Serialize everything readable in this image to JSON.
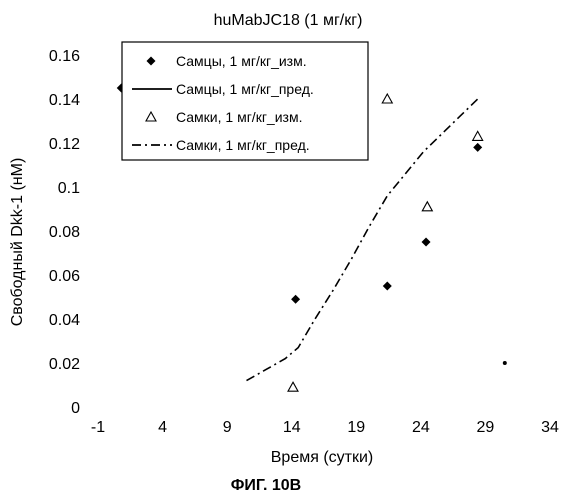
{
  "chart_data": {
    "type": "scatter",
    "title": "huMabJC18 (1 мг/кг)",
    "xlabel": "Время (сутки)",
    "ylabel": "Свободный Dkk-1 (нМ)",
    "caption": "ФИГ. 10В",
    "xlim": [
      -1,
      34
    ],
    "ylim": [
      0,
      0.16
    ],
    "xticks": [
      "-1",
      "4",
      "9",
      "14",
      "19",
      "24",
      "29",
      "34"
    ],
    "yticks": [
      "0",
      "0.02",
      "0.04",
      "0.06",
      "0.08",
      "0.1",
      "0.12",
      "0.14",
      "0.16"
    ],
    "legend_position": "top-center",
    "series": [
      {
        "name": "Самцы, 1 мг/кг_изм.",
        "kind": "marker-diamond",
        "color": "#000000",
        "x": [
          0.8,
          14.3,
          21.4,
          24.4,
          28.4
        ],
        "y": [
          0.145,
          0.049,
          0.055,
          0.075,
          0.118
        ]
      },
      {
        "name": "Самцы, 1 мг/кг_пред.",
        "kind": "line-solid",
        "color": "#000000",
        "x": [],
        "y": []
      },
      {
        "name": "Самки, 1 мг/кг_изм.",
        "kind": "marker-triangle-open",
        "color": "#000000",
        "x": [
          14.1,
          21.4,
          24.5,
          28.4
        ],
        "y": [
          0.009,
          0.14,
          0.091,
          0.123
        ]
      },
      {
        "name": "Самки, 1 мг/кг_пред.",
        "kind": "line-dashdot",
        "color": "#000000",
        "x": [
          10.5,
          12.0,
          13.5,
          14.5,
          15.8,
          17.2,
          18.6,
          20.0,
          21.4,
          22.8,
          24.2,
          25.6,
          27.0,
          28.4
        ],
        "y": [
          0.012,
          0.017,
          0.022,
          0.027,
          0.04,
          0.053,
          0.067,
          0.082,
          0.096,
          0.106,
          0.116,
          0.124,
          0.132,
          0.14
        ]
      },
      {
        "name": "",
        "kind": "marker-dot",
        "color": "#000000",
        "x": [
          30.5
        ],
        "y": [
          0.02
        ]
      }
    ]
  }
}
